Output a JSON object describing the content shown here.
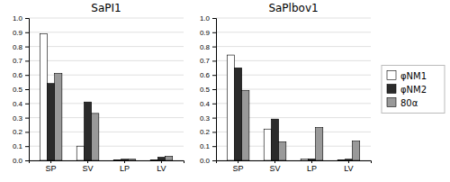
{
  "chart_data": [
    {
      "type": "bar",
      "title": "SaPI1",
      "categories": [
        "SP",
        "SV",
        "LP",
        "LV"
      ],
      "series": [
        {
          "name": "φNM1",
          "color": "#ffffff",
          "values": [
            0.89,
            0.1,
            0.004,
            0.003
          ]
        },
        {
          "name": "φNM2",
          "color": "#2b2b2b",
          "values": [
            0.54,
            0.41,
            0.008,
            0.022
          ]
        },
        {
          "name": "80α",
          "color": "#999999",
          "values": [
            0.61,
            0.33,
            0.008,
            0.028
          ]
        }
      ],
      "ylim": [
        0.0,
        1.0
      ],
      "yticks": [
        {
          "value": 0.0,
          "label": "0.0"
        },
        0.1,
        0.2,
        0.3,
        0.4,
        0.5,
        0.6,
        0.7,
        0.8,
        0.9,
        {
          "value": 1.0,
          "label": "1.0"
        }
      ],
      "grid": true,
      "legend": "right"
    },
    {
      "type": "bar",
      "title": "SaPlbov1",
      "categories": [
        "SP",
        "SV",
        "LP",
        "LV"
      ],
      "series": [
        {
          "name": "φNM1",
          "color": "#ffffff",
          "values": [
            0.74,
            0.22,
            0.01,
            0.003
          ]
        },
        {
          "name": "φNM2",
          "color": "#2b2b2b",
          "values": [
            0.65,
            0.29,
            0.01,
            0.008
          ]
        },
        {
          "name": "80α",
          "color": "#999999",
          "values": [
            0.49,
            0.13,
            0.23,
            0.135
          ]
        }
      ],
      "ylim": [
        0.0,
        1.0
      ],
      "yticks": [
        {
          "value": 0.0,
          "label": "0.0"
        },
        0.1,
        0.2,
        0.3,
        0.4,
        0.5,
        0.6,
        0.7,
        0.8,
        0.9,
        {
          "value": 1.0,
          "label": "1.0"
        }
      ],
      "grid": true
    }
  ]
}
